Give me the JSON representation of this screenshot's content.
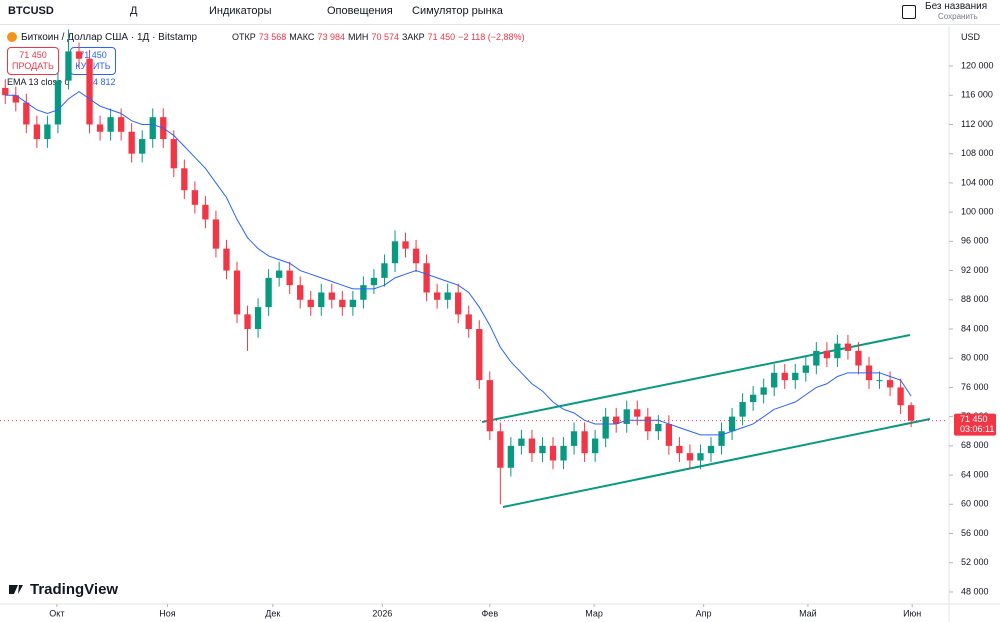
{
  "toolbar": {
    "symbol": "BTCUSD",
    "interval": "Д",
    "indicators": "Индикаторы",
    "alerts": "Оповещения",
    "simulator": "Симулятор рынка",
    "layout_name": "Без названия",
    "save": "Сохранить",
    "currency": "USD"
  },
  "header": {
    "title": "Биткоин / Доллар США · 1Д · Bitstamp",
    "ohlc_legend": [
      {
        "key": "ОТКР",
        "text": "73 568"
      },
      {
        "key": "МАКС",
        "text": "73 984"
      },
      {
        "key": "МИН",
        "text": "70 574"
      },
      {
        "key": "ЗАКР",
        "text": "71 450"
      }
    ],
    "change": "−2 118 (−2,88%)",
    "sell_price": "71 450",
    "sell": "ПРОДАТЬ",
    "buy_price": "71 450",
    "buy": "КУПИТЬ",
    "ema_name": "EMA 13 close 0",
    "ema_value": "74 812",
    "logo": "TradingView"
  },
  "chart_data": {
    "type": "candlestick",
    "up_color": "#089981",
    "down_color": "#f23645",
    "open": [
      117000,
      116000,
      115000,
      112000,
      110000,
      112000,
      118000,
      122000,
      121000,
      112000,
      111000,
      113000,
      111000,
      108000,
      110000,
      113000,
      110000,
      106000,
      103000,
      101000,
      99000,
      95000,
      92000,
      86000,
      84000,
      87000,
      91000,
      92000,
      90000,
      88000,
      87000,
      89000,
      88000,
      87000,
      88000,
      90000,
      91000,
      93000,
      96000,
      95000,
      93000,
      89000,
      88000,
      89000,
      86000,
      84000,
      77000,
      70000,
      65000,
      68000,
      69000,
      67000,
      68000,
      66000,
      68000,
      70000,
      67000,
      69000,
      72000,
      71000,
      73000,
      72000,
      70000,
      71000,
      68000,
      67000,
      66000,
      67000,
      68000,
      70000,
      72000,
      74000,
      75000,
      76000,
      78000,
      77000,
      78000,
      79000,
      81000,
      80000,
      82000,
      81000,
      79000,
      77000,
      77000,
      76000,
      73568
    ],
    "high": [
      118200,
      117200,
      116200,
      113200,
      113200,
      119200,
      125000,
      123200,
      122200,
      113200,
      114200,
      114200,
      112200,
      111200,
      114200,
      114200,
      111200,
      107200,
      104200,
      102200,
      100200,
      96200,
      93200,
      87200,
      88200,
      92200,
      93200,
      93200,
      91200,
      89200,
      90200,
      90200,
      89200,
      89200,
      91200,
      92200,
      94200,
      97500,
      97200,
      96200,
      94200,
      90200,
      90200,
      90200,
      87200,
      85200,
      78200,
      71200,
      69200,
      70200,
      70200,
      69200,
      69200,
      69200,
      71200,
      71200,
      70200,
      73200,
      73200,
      74200,
      74200,
      73200,
      72200,
      72200,
      69200,
      68200,
      68200,
      69200,
      71200,
      73200,
      75200,
      76200,
      77200,
      79200,
      79200,
      79200,
      80200,
      82200,
      82200,
      83200,
      83200,
      82200,
      80200,
      78200,
      78200,
      77200,
      73984
    ],
    "low": [
      114800,
      113800,
      110800,
      108800,
      108800,
      110800,
      116800,
      119800,
      110800,
      109800,
      109800,
      109800,
      106800,
      106800,
      108800,
      108800,
      104800,
      101800,
      99800,
      97800,
      93800,
      90800,
      84800,
      81000,
      82800,
      85800,
      89800,
      88800,
      86800,
      85800,
      85800,
      86800,
      85800,
      85800,
      86800,
      88800,
      89800,
      91800,
      93800,
      91800,
      87800,
      86800,
      86800,
      84800,
      82800,
      75800,
      68800,
      60000,
      63800,
      66800,
      65800,
      65800,
      64800,
      64800,
      66800,
      65800,
      65800,
      67800,
      69800,
      69800,
      70800,
      68800,
      68800,
      66800,
      65800,
      64800,
      64800,
      65800,
      66800,
      68800,
      70800,
      72800,
      73800,
      74800,
      75800,
      75800,
      76800,
      77800,
      78800,
      78800,
      79800,
      77800,
      75800,
      75800,
      74800,
      72368,
      70574
    ],
    "close": [
      116000,
      115000,
      112000,
      110000,
      112000,
      118000,
      122000,
      121000,
      112000,
      111000,
      113000,
      111000,
      108000,
      110000,
      113000,
      110000,
      106000,
      103000,
      101000,
      99000,
      95000,
      92000,
      86000,
      84000,
      87000,
      91000,
      92000,
      90000,
      88000,
      87000,
      89000,
      88000,
      87000,
      88000,
      90000,
      91000,
      93000,
      96000,
      95000,
      93000,
      89000,
      88000,
      89000,
      86000,
      84000,
      77000,
      70000,
      65000,
      68000,
      69000,
      67000,
      68000,
      66000,
      68000,
      70000,
      67000,
      69000,
      72000,
      71000,
      73000,
      72000,
      70000,
      71000,
      68000,
      67000,
      66000,
      67000,
      68000,
      70000,
      72000,
      74000,
      75000,
      76000,
      78000,
      77000,
      78000,
      79000,
      81000,
      80000,
      82000,
      81000,
      79000,
      77000,
      77000,
      76000,
      73568,
      71450
    ],
    "ema": {
      "color": "#2962ff",
      "values": [
        116000,
        116000,
        115000,
        114000,
        113500,
        114000,
        115500,
        116500,
        115500,
        114500,
        114000,
        113500,
        112500,
        112000,
        112000,
        111500,
        110500,
        109000,
        107500,
        106000,
        104000,
        102000,
        99000,
        96500,
        95000,
        94000,
        93500,
        93000,
        92000,
        91500,
        91000,
        90500,
        90000,
        89500,
        89500,
        89500,
        90000,
        91000,
        91500,
        92000,
        91500,
        91000,
        90500,
        90000,
        89000,
        87000,
        84500,
        81500,
        79500,
        78000,
        76500,
        75500,
        74000,
        73000,
        72500,
        71500,
        71000,
        71000,
        71000,
        71500,
        71500,
        71500,
        71500,
        71000,
        70500,
        70000,
        69500,
        69500,
        69500,
        70000,
        70500,
        71000,
        72000,
        73000,
        73500,
        74000,
        75000,
        76000,
        76500,
        77500,
        78000,
        78000,
        78000,
        78000,
        77500,
        77000,
        74812
      ]
    },
    "xlim": [
      -0.5,
      89.5
    ],
    "xticks": [
      {
        "value": 4.9,
        "label": "Окт"
      },
      {
        "value": 15.4,
        "label": "Ноя"
      },
      {
        "value": 25.4,
        "label": "Дек"
      },
      {
        "value": 35.8,
        "label": "2026"
      },
      {
        "value": 46,
        "label": "Фев"
      },
      {
        "value": 55.9,
        "label": "Мар"
      },
      {
        "value": 66.3,
        "label": "Апр"
      },
      {
        "value": 76.2,
        "label": "Май"
      },
      {
        "value": 86.1,
        "label": "Июн"
      }
    ],
    "ylim": [
      46350,
      125480
    ],
    "yticks": [
      {
        "value": 48000,
        "label": "48 000"
      },
      {
        "value": 52000,
        "label": "52 000"
      },
      {
        "value": 56000,
        "label": "56 000"
      },
      {
        "value": 60000,
        "label": "60 000"
      },
      {
        "value": 64000,
        "label": "64 000"
      },
      {
        "value": 68000,
        "label": "68 000"
      },
      {
        "value": 72000,
        "label": "72 000"
      },
      {
        "value": 76000,
        "label": "76 000"
      },
      {
        "value": 80000,
        "label": "80 000"
      },
      {
        "value": 84000,
        "label": "84 000"
      },
      {
        "value": 88000,
        "label": "88 000"
      },
      {
        "value": 92000,
        "label": "92 000"
      },
      {
        "value": 96000,
        "label": "96 000"
      },
      {
        "value": 100000,
        "label": "100 000"
      },
      {
        "value": 104000,
        "label": "104 000"
      },
      {
        "value": 108000,
        "label": "108 000"
      },
      {
        "value": 112000,
        "label": "112 000"
      },
      {
        "value": 116000,
        "label": "116 000"
      },
      {
        "value": 120000,
        "label": "120 000"
      }
    ],
    "price_tag": {
      "value": 71450,
      "label": "71 450"
    },
    "countdown": "03:06:11",
    "grid": false
  }
}
